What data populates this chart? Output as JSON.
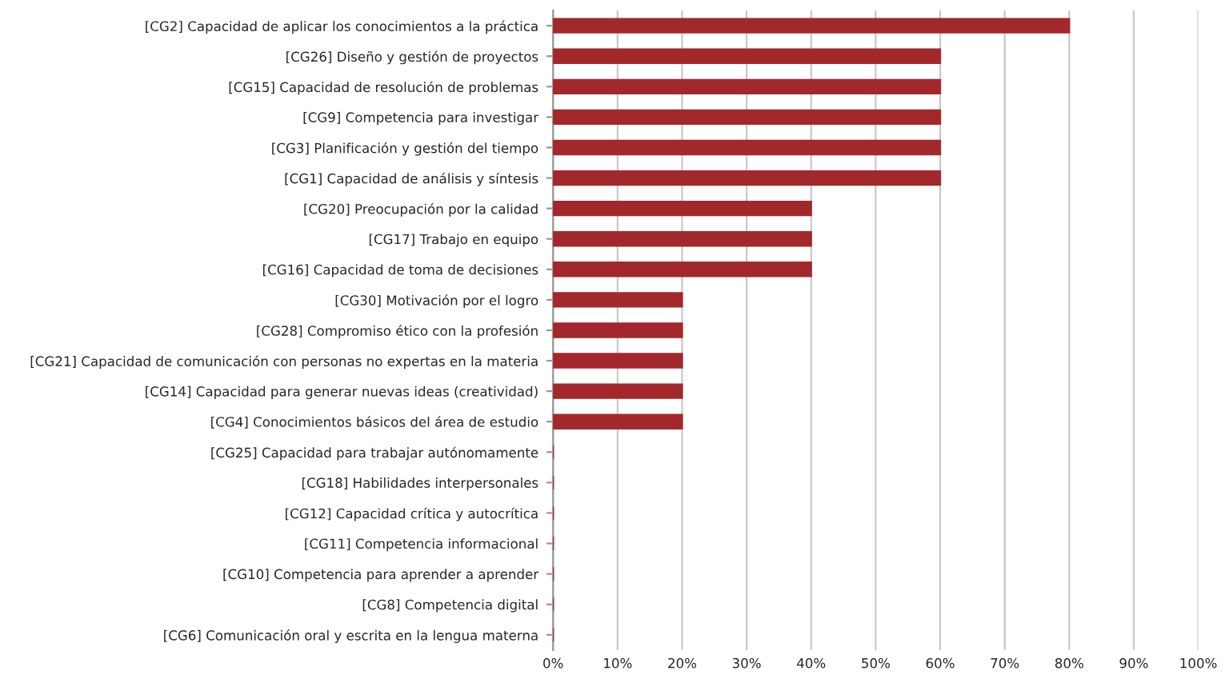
{
  "chart_data": {
    "type": "bar",
    "orientation": "horizontal",
    "categories": [
      "[CG2] Capacidad de aplicar los conocimientos a la práctica",
      "[CG26] Diseño y gestión de proyectos",
      "[CG15] Capacidad de resolución de problemas",
      "[CG9] Competencia para investigar",
      "[CG3] Planificación y gestión del tiempo",
      "[CG1] Capacidad de análisis y síntesis",
      "[CG20] Preocupación por la calidad",
      "[CG17] Trabajo en equipo",
      "[CG16] Capacidad de toma de decisiones",
      "[CG30] Motivación por el logro",
      "[CG28] Compromiso ético con la profesión",
      "[CG21] Capacidad de comunicación con personas no expertas en la materia",
      "[CG14] Capacidad para generar nuevas ideas (creatividad)",
      "[CG4] Conocimientos básicos del área de estudio",
      "[CG25] Capacidad para trabajar autónomamente",
      "[CG18] Habilidades interpersonales",
      "[CG12] Capacidad crítica y autocrítica",
      "[CG11] Competencia informacional",
      "[CG10] Competencia para aprender a aprender",
      "[CG8] Competencia digital",
      "[CG6] Comunicación oral y escrita en la lengua materna"
    ],
    "values": [
      80,
      60,
      60,
      60,
      60,
      60,
      40,
      40,
      40,
      20,
      20,
      20,
      20,
      20,
      0,
      0,
      0,
      0,
      0,
      0,
      0
    ],
    "color": "#a3282c",
    "xlim": [
      0,
      100
    ],
    "xticks": [
      {
        "value": 0,
        "label": "0%"
      },
      {
        "value": 10,
        "label": "10%"
      },
      {
        "value": 20,
        "label": "20%"
      },
      {
        "value": 30,
        "label": "30%"
      },
      {
        "value": 40,
        "label": "40%"
      },
      {
        "value": 50,
        "label": "50%"
      },
      {
        "value": 60,
        "label": "60%"
      },
      {
        "value": 70,
        "label": "70%"
      },
      {
        "value": 80,
        "label": "80%"
      },
      {
        "value": 90,
        "label": "90%"
      },
      {
        "value": 100,
        "label": "100%"
      }
    ],
    "grid": "x",
    "legend": false
  }
}
